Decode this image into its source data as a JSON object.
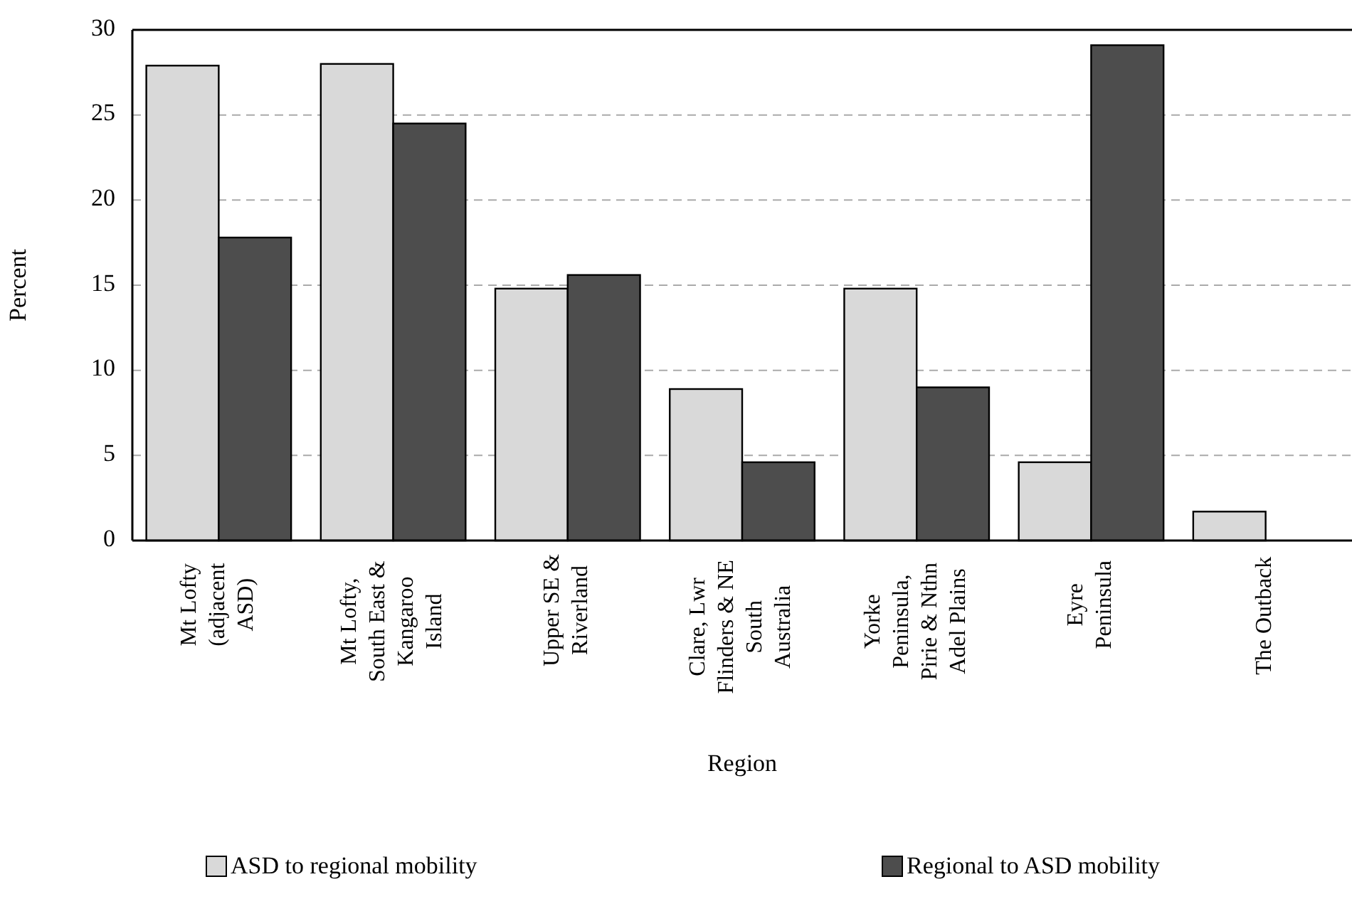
{
  "chart_data": {
    "type": "bar",
    "xlabel": "Region",
    "ylabel": "Percent",
    "categories": [
      "Mt Lofty (adjacent ASD)",
      "Mt Lofty, South East & Kangaroo Island",
      "Upper SE & Riverland",
      "Clare, Lwr Flinders & NE South Australia",
      "Yorke Peninsula, Pirie & Nthn Adel Plains",
      "Eyre Peninsula",
      "The Outback"
    ],
    "series": [
      {
        "name": "ASD to regional mobility",
        "color": "#d9d9d9",
        "values": [
          27.9,
          28.0,
          14.8,
          8.9,
          14.8,
          4.6,
          1.7
        ]
      },
      {
        "name": "Regional to ASD mobility",
        "color": "#4d4d4d",
        "values": [
          17.8,
          24.5,
          15.6,
          4.6,
          9.0,
          29.1,
          null
        ]
      }
    ],
    "ylim": [
      0,
      30
    ],
    "yticks": [
      0,
      5,
      10,
      15,
      20,
      25,
      30
    ],
    "grid": "y",
    "legend": "bottom"
  }
}
